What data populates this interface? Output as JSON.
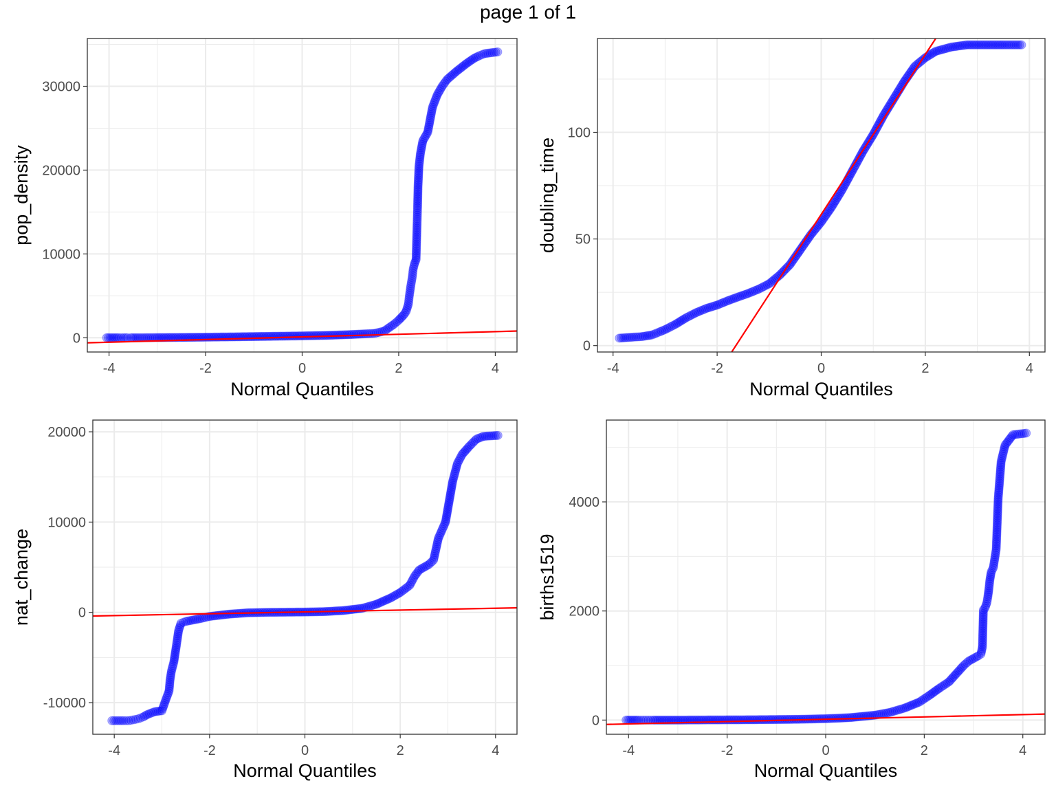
{
  "page_title": "page 1 of 1",
  "colors": {
    "points": "#0000ff",
    "reference_line": "#ff0000",
    "grid": "#ebebeb",
    "panel_border": "#333333"
  },
  "chart_data": [
    {
      "type": "scatter",
      "subtype": "normal-qq",
      "xlabel": "Normal Quantiles",
      "ylabel": "pop_density",
      "xlim": [
        -4.45,
        4.45
      ],
      "ylim": [
        -1700,
        35700
      ],
      "xticks": [
        -4,
        -2,
        0,
        2,
        4
      ],
      "yticks": [
        0,
        10000,
        20000,
        30000
      ],
      "ytick_labels": [
        "0",
        "10000",
        "20000",
        "30000"
      ],
      "grid": true,
      "reference_line": {
        "x": [
          -4.45,
          4.45
        ],
        "y": [
          -600,
          800
        ]
      },
      "points": [
        [
          -4.05,
          0
        ],
        [
          -3.8,
          0
        ],
        [
          -3.7,
          0
        ],
        [
          -3.62,
          0
        ],
        [
          -3.55,
          0
        ],
        [
          -3.4,
          0
        ],
        [
          -3.2,
          10
        ],
        [
          -3.0,
          20
        ],
        [
          -2.5,
          40
        ],
        [
          -2.0,
          70
        ],
        [
          -1.5,
          100
        ],
        [
          -1.0,
          140
        ],
        [
          -0.5,
          180
        ],
        [
          0,
          220
        ],
        [
          0.5,
          280
        ],
        [
          1.0,
          380
        ],
        [
          1.3,
          460
        ],
        [
          1.5,
          520
        ],
        [
          1.7,
          800
        ],
        [
          1.8,
          1200
        ],
        [
          1.9,
          1600
        ],
        [
          2.0,
          2100
        ],
        [
          2.1,
          2700
        ],
        [
          2.15,
          3100
        ],
        [
          2.2,
          4000
        ],
        [
          2.22,
          5000
        ],
        [
          2.25,
          6200
        ],
        [
          2.28,
          7200
        ],
        [
          2.3,
          8200
        ],
        [
          2.33,
          8900
        ],
        [
          2.36,
          9300
        ],
        [
          2.38,
          13500
        ],
        [
          2.39,
          15500
        ],
        [
          2.4,
          18000
        ],
        [
          2.42,
          20500
        ],
        [
          2.45,
          22000
        ],
        [
          2.5,
          23500
        ],
        [
          2.6,
          24500
        ],
        [
          2.65,
          26000
        ],
        [
          2.7,
          27500
        ],
        [
          2.8,
          29000
        ],
        [
          2.9,
          30000
        ],
        [
          3.0,
          30800
        ],
        [
          3.2,
          31800
        ],
        [
          3.4,
          32700
        ],
        [
          3.55,
          33300
        ],
        [
          3.65,
          33600
        ],
        [
          3.78,
          33900
        ],
        [
          4.05,
          34100
        ]
      ]
    },
    {
      "type": "scatter",
      "subtype": "normal-qq",
      "xlabel": "Normal Quantiles",
      "ylabel": "doubling_time",
      "xlim": [
        -4.3,
        4.3
      ],
      "ylim": [
        -3,
        144
      ],
      "xticks": [
        -4,
        -2,
        0,
        2,
        4
      ],
      "yticks": [
        0,
        50,
        100
      ],
      "ytick_labels": [
        "0",
        "50",
        "100"
      ],
      "grid": true,
      "reference_line": {
        "x": [
          -1.72,
          2.2
        ],
        "y": [
          -3,
          144
        ]
      },
      "points": [
        [
          -3.88,
          3.5
        ],
        [
          -3.6,
          4
        ],
        [
          -3.45,
          4.2
        ],
        [
          -3.35,
          4.6
        ],
        [
          -3.25,
          5
        ],
        [
          -3.1,
          6.5
        ],
        [
          -3.0,
          7.5
        ],
        [
          -2.8,
          10
        ],
        [
          -2.6,
          13
        ],
        [
          -2.4,
          15.5
        ],
        [
          -2.2,
          17.5
        ],
        [
          -2.0,
          19
        ],
        [
          -1.8,
          21
        ],
        [
          -1.6,
          22.8
        ],
        [
          -1.4,
          24.5
        ],
        [
          -1.2,
          26.5
        ],
        [
          -1.0,
          29
        ],
        [
          -0.8,
          33
        ],
        [
          -0.6,
          38
        ],
        [
          -0.4,
          45
        ],
        [
          -0.2,
          52
        ],
        [
          0,
          58
        ],
        [
          0.2,
          65
        ],
        [
          0.4,
          73
        ],
        [
          0.6,
          82
        ],
        [
          0.8,
          91
        ],
        [
          1.0,
          99
        ],
        [
          1.2,
          108
        ],
        [
          1.4,
          116
        ],
        [
          1.6,
          124
        ],
        [
          1.8,
          131
        ],
        [
          2.0,
          135
        ],
        [
          2.2,
          138
        ],
        [
          2.5,
          140
        ],
        [
          2.8,
          141
        ],
        [
          3.0,
          141
        ],
        [
          3.2,
          141
        ],
        [
          3.5,
          141
        ],
        [
          3.85,
          141
        ]
      ]
    },
    {
      "type": "scatter",
      "subtype": "normal-qq",
      "xlabel": "Normal Quantiles",
      "ylabel": "nat_change",
      "xlim": [
        -4.45,
        4.45
      ],
      "ylim": [
        -13500,
        21300
      ],
      "xticks": [
        -4,
        -2,
        0,
        2,
        4
      ],
      "yticks": [
        -10000,
        0,
        10000,
        20000
      ],
      "ytick_labels": [
        "-10000",
        "0",
        "10000",
        "20000"
      ],
      "grid": true,
      "reference_line": {
        "x": [
          -4.45,
          4.45
        ],
        "y": [
          -400,
          500
        ]
      },
      "points": [
        [
          -4.05,
          -12000
        ],
        [
          -3.8,
          -12000
        ],
        [
          -3.7,
          -12000
        ],
        [
          -3.6,
          -11900
        ],
        [
          -3.5,
          -11800
        ],
        [
          -3.4,
          -11600
        ],
        [
          -3.3,
          -11300
        ],
        [
          -3.15,
          -11000
        ],
        [
          -3.0,
          -10900
        ],
        [
          -2.92,
          -9700
        ],
        [
          -2.85,
          -8700
        ],
        [
          -2.83,
          -7500
        ],
        [
          -2.8,
          -6500
        ],
        [
          -2.75,
          -5500
        ],
        [
          -2.7,
          -3800
        ],
        [
          -2.65,
          -2000
        ],
        [
          -2.6,
          -1200
        ],
        [
          -2.5,
          -1000
        ],
        [
          -2.2,
          -700
        ],
        [
          -2.0,
          -450
        ],
        [
          -1.6,
          -200
        ],
        [
          -1.2,
          -50
        ],
        [
          -0.8,
          0
        ],
        [
          -0.4,
          20
        ],
        [
          0,
          40
        ],
        [
          0.4,
          80
        ],
        [
          0.8,
          200
        ],
        [
          1.2,
          450
        ],
        [
          1.5,
          900
        ],
        [
          1.8,
          1600
        ],
        [
          2.0,
          2200
        ],
        [
          2.2,
          3000
        ],
        [
          2.3,
          4000
        ],
        [
          2.4,
          4700
        ],
        [
          2.5,
          5000
        ],
        [
          2.6,
          5300
        ],
        [
          2.7,
          5800
        ],
        [
          2.75,
          7000
        ],
        [
          2.8,
          8200
        ],
        [
          2.85,
          8800
        ],
        [
          2.95,
          10000
        ],
        [
          3.0,
          11500
        ],
        [
          3.05,
          13000
        ],
        [
          3.1,
          14500
        ],
        [
          3.2,
          16500
        ],
        [
          3.3,
          17500
        ],
        [
          3.45,
          18400
        ],
        [
          3.6,
          19200
        ],
        [
          3.75,
          19500
        ],
        [
          4.05,
          19600
        ]
      ]
    },
    {
      "type": "scatter",
      "subtype": "normal-qq",
      "xlabel": "Normal Quantiles",
      "ylabel": "births1519",
      "xlim": [
        -4.45,
        4.45
      ],
      "ylim": [
        -260,
        5500
      ],
      "xticks": [
        -4,
        -2,
        0,
        2,
        4
      ],
      "yticks": [
        0,
        2000,
        4000
      ],
      "ytick_labels": [
        "0",
        "2000",
        "4000"
      ],
      "grid": true,
      "reference_line": {
        "x": [
          -4.45,
          4.45
        ],
        "y": [
          -80,
          110
        ]
      },
      "points": [
        [
          -4.05,
          0
        ],
        [
          -3.8,
          0
        ],
        [
          -3.7,
          0
        ],
        [
          -3.6,
          0
        ],
        [
          -3.5,
          0
        ],
        [
          -3.0,
          0
        ],
        [
          -2.5,
          2
        ],
        [
          -2.0,
          4
        ],
        [
          -1.5,
          6
        ],
        [
          -1.0,
          10
        ],
        [
          -0.5,
          15
        ],
        [
          0,
          25
        ],
        [
          0.5,
          45
        ],
        [
          1.0,
          90
        ],
        [
          1.3,
          140
        ],
        [
          1.6,
          220
        ],
        [
          1.9,
          330
        ],
        [
          2.1,
          450
        ],
        [
          2.3,
          580
        ],
        [
          2.5,
          700
        ],
        [
          2.6,
          800
        ],
        [
          2.7,
          900
        ],
        [
          2.8,
          1000
        ],
        [
          2.9,
          1080
        ],
        [
          3.0,
          1130
        ],
        [
          3.1,
          1180
        ],
        [
          3.15,
          1210
        ],
        [
          3.18,
          1340
        ],
        [
          3.2,
          2020
        ],
        [
          3.23,
          2050
        ],
        [
          3.27,
          2150
        ],
        [
          3.29,
          2260
        ],
        [
          3.31,
          2390
        ],
        [
          3.33,
          2560
        ],
        [
          3.36,
          2720
        ],
        [
          3.4,
          2790
        ],
        [
          3.46,
          3130
        ],
        [
          3.5,
          4060
        ],
        [
          3.56,
          4740
        ],
        [
          3.64,
          5040
        ],
        [
          3.8,
          5230
        ],
        [
          4.07,
          5260
        ]
      ]
    }
  ]
}
